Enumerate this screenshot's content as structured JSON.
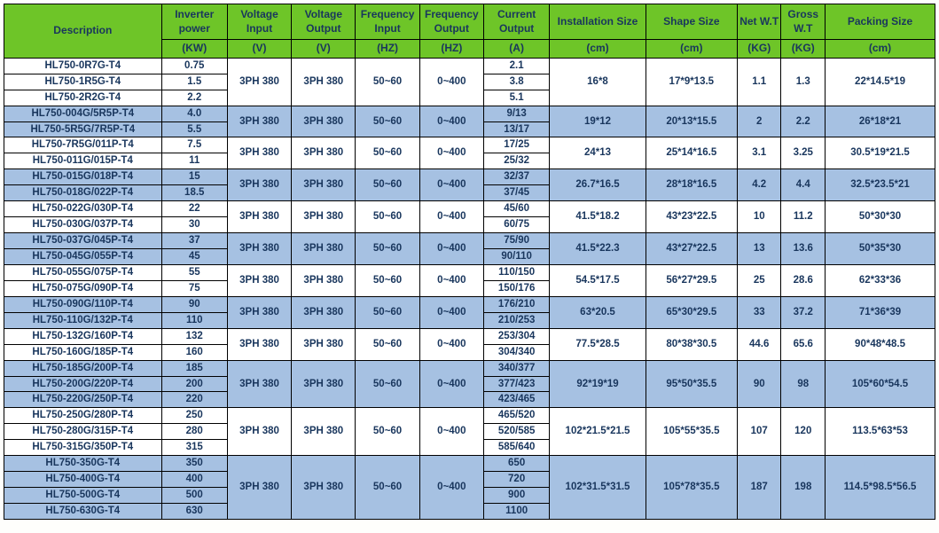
{
  "colors": {
    "header_bg": "#6ec528",
    "header_fg": "#19365d",
    "row_blue": "#a6c1e2",
    "row_white": "#ffffff",
    "border": "#000000"
  },
  "font": {
    "family": "Arial",
    "header_size": 12,
    "cell_size": 11.5,
    "weight": "bold"
  },
  "header": {
    "labels": [
      "Description",
      "Inverter power",
      "Voltage Input",
      "Voltage Output",
      "Frequency Input",
      "Frequency Output",
      "Current Output",
      "Installation Size",
      "Shape Size",
      "Net W.T",
      "Gross W.T",
      "Packing Size"
    ],
    "units": [
      "(KW)",
      "(V)",
      "(V)",
      "(HZ)",
      "(HZ)",
      "(A)",
      "(cm)",
      "(cm)",
      "(KG)",
      "(KG)",
      "(cm)"
    ]
  },
  "groups": [
    {
      "color": "white",
      "vin": "3PH 380",
      "vout": "3PH 380",
      "fin": "50~60",
      "fout": "0~400",
      "inst": "16*8",
      "shape": "17*9*13.5",
      "net": "1.1",
      "gross": "1.3",
      "pack": "22*14.5*19",
      "rows": [
        {
          "desc": "HL750-0R7G-T4",
          "kw": "0.75",
          "cur": "2.1"
        },
        {
          "desc": "HL750-1R5G-T4",
          "kw": "1.5",
          "cur": "3.8"
        },
        {
          "desc": "HL750-2R2G-T4",
          "kw": "2.2",
          "cur": "5.1"
        }
      ]
    },
    {
      "color": "blue",
      "vin": "3PH 380",
      "vout": "3PH 380",
      "fin": "50~60",
      "fout": "0~400",
      "inst": "19*12",
      "shape": "20*13*15.5",
      "net": "2",
      "gross": "2.2",
      "pack": "26*18*21",
      "rows": [
        {
          "desc": "HL750-004G/5R5P-T4",
          "kw": "4.0",
          "cur": "9/13"
        },
        {
          "desc": "HL750-5R5G/7R5P-T4",
          "kw": "5.5",
          "cur": "13/17"
        }
      ]
    },
    {
      "color": "white",
      "vin": "3PH 380",
      "vout": "3PH 380",
      "fin": "50~60",
      "fout": "0~400",
      "inst": "24*13",
      "shape": "25*14*16.5",
      "net": "3.1",
      "gross": "3.25",
      "pack": "30.5*19*21.5",
      "rows": [
        {
          "desc": "HL750-7R5G/011P-T4",
          "kw": "7.5",
          "cur": "17/25"
        },
        {
          "desc": "HL750-011G/015P-T4",
          "kw": "11",
          "cur": "25/32"
        }
      ]
    },
    {
      "color": "blue",
      "vin": "3PH 380",
      "vout": "3PH 380",
      "fin": "50~60",
      "fout": "0~400",
      "inst": "26.7*16.5",
      "shape": "28*18*16.5",
      "net": "4.2",
      "gross": "4.4",
      "pack": "32.5*23.5*21",
      "rows": [
        {
          "desc": "HL750-015G/018P-T4",
          "kw": "15",
          "cur": "32/37"
        },
        {
          "desc": "HL750-018G/022P-T4",
          "kw": "18.5",
          "cur": "37/45"
        }
      ]
    },
    {
      "color": "white",
      "vin": "3PH 380",
      "vout": "3PH 380",
      "fin": "50~60",
      "fout": "0~400",
      "inst": "41.5*18.2",
      "shape": "43*23*22.5",
      "net": "10",
      "gross": "11.2",
      "pack": "50*30*30",
      "rows": [
        {
          "desc": "HL750-022G/030P-T4",
          "kw": "22",
          "cur": "45/60"
        },
        {
          "desc": "HL750-030G/037P-T4",
          "kw": "30",
          "cur": "60/75"
        }
      ]
    },
    {
      "color": "blue",
      "vin": "3PH 380",
      "vout": "3PH 380",
      "fin": "50~60",
      "fout": "0~400",
      "inst": "41.5*22.3",
      "shape": "43*27*22.5",
      "net": "13",
      "gross": "13.6",
      "pack": "50*35*30",
      "rows": [
        {
          "desc": "HL750-037G/045P-T4",
          "kw": "37",
          "cur": "75/90"
        },
        {
          "desc": "HL750-045G/055P-T4",
          "kw": "45",
          "cur": "90/110"
        }
      ]
    },
    {
      "color": "white",
      "vin": "3PH 380",
      "vout": "3PH 380",
      "fin": "50~60",
      "fout": "0~400",
      "inst": "54.5*17.5",
      "shape": "56*27*29.5",
      "net": "25",
      "gross": "28.6",
      "pack": "62*33*36",
      "rows": [
        {
          "desc": "HL750-055G/075P-T4",
          "kw": "55",
          "cur": "110/150"
        },
        {
          "desc": "HL750-075G/090P-T4",
          "kw": "75",
          "cur": "150/176"
        }
      ]
    },
    {
      "color": "blue",
      "vin": "3PH 380",
      "vout": "3PH 380",
      "fin": "50~60",
      "fout": "0~400",
      "inst": "63*20.5",
      "shape": "65*30*29.5",
      "net": "33",
      "gross": "37.2",
      "pack": "71*36*39",
      "rows": [
        {
          "desc": "HL750-090G/110P-T4",
          "kw": "90",
          "cur": "176/210"
        },
        {
          "desc": "HL750-110G/132P-T4",
          "kw": "110",
          "cur": "210/253"
        }
      ]
    },
    {
      "color": "white",
      "vin": "3PH 380",
      "vout": "3PH 380",
      "fin": "50~60",
      "fout": "0~400",
      "inst": "77.5*28.5",
      "shape": "80*38*30.5",
      "net": "44.6",
      "gross": "65.6",
      "pack": "90*48*48.5",
      "rows": [
        {
          "desc": "HL750-132G/160P-T4",
          "kw": "132",
          "cur": "253/304"
        },
        {
          "desc": "HL750-160G/185P-T4",
          "kw": "160",
          "cur": "304/340"
        }
      ]
    },
    {
      "color": "blue",
      "vin": "3PH 380",
      "vout": "3PH 380",
      "fin": "50~60",
      "fout": "0~400",
      "inst": "92*19*19",
      "shape": "95*50*35.5",
      "net": "90",
      "gross": "98",
      "pack": "105*60*54.5",
      "rows": [
        {
          "desc": "HL750-185G/200P-T4",
          "kw": "185",
          "cur": "340/377"
        },
        {
          "desc": "HL750-200G/220P-T4",
          "kw": "200",
          "cur": "377/423"
        },
        {
          "desc": "HL750-220G/250P-T4",
          "kw": "220",
          "cur": "423/465"
        }
      ]
    },
    {
      "color": "white",
      "vin": "3PH 380",
      "vout": "3PH 380",
      "fin": "50~60",
      "fout": "0~400",
      "inst": "102*21.5*21.5",
      "shape": "105*55*35.5",
      "net": "107",
      "gross": "120",
      "pack": "113.5*63*53",
      "rows": [
        {
          "desc": "HL750-250G/280P-T4",
          "kw": "250",
          "cur": "465/520"
        },
        {
          "desc": "HL750-280G/315P-T4",
          "kw": "280",
          "cur": "520/585"
        },
        {
          "desc": "HL750-315G/350P-T4",
          "kw": "315",
          "cur": "585/640"
        }
      ]
    },
    {
      "color": "blue",
      "vin": "3PH 380",
      "vout": "3PH 380",
      "fin": "50~60",
      "fout": "0~400",
      "inst": "102*31.5*31.5",
      "shape": "105*78*35.5",
      "net": "187",
      "gross": "198",
      "pack": "114.5*98.5*56.5",
      "rows": [
        {
          "desc": "HL750-350G-T4",
          "kw": "350",
          "cur": "650"
        },
        {
          "desc": "HL750-400G-T4",
          "kw": "400",
          "cur": "720"
        },
        {
          "desc": "HL750-500G-T4",
          "kw": "500",
          "cur": "900"
        },
        {
          "desc": "HL750-630G-T4",
          "kw": "630",
          "cur": "1100"
        }
      ]
    }
  ]
}
